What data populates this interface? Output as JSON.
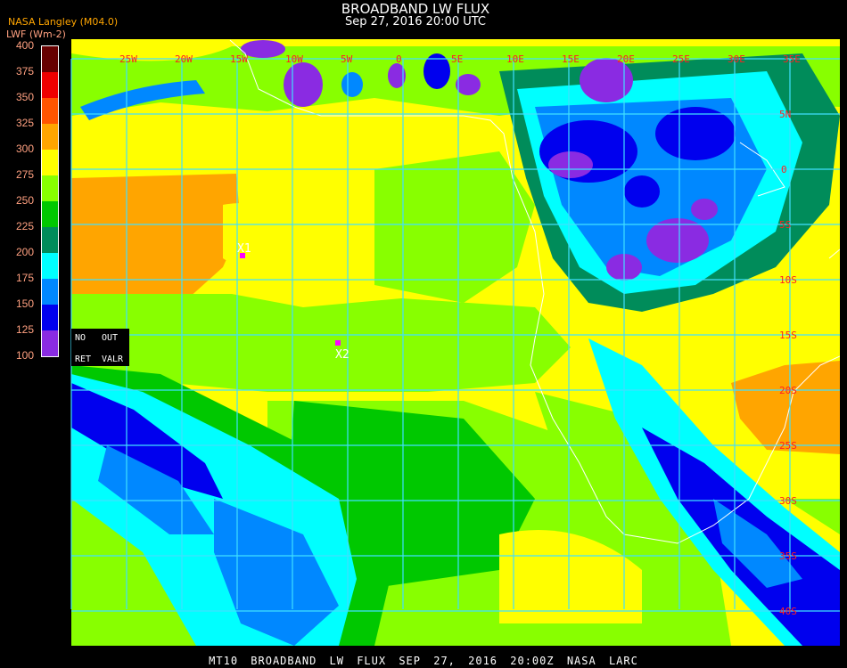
{
  "header": {
    "title": "BROADBAND LW FLUX",
    "subtitle": "Sep 27, 2016 20:00 UTC",
    "org": "NASA Langley (M04.0)",
    "unit": "LWF (Wm-2)"
  },
  "legend": {
    "ticks": [
      "400",
      "375",
      "350",
      "325",
      "300",
      "275",
      "250",
      "225",
      "200",
      "175",
      "150",
      "125",
      "100"
    ],
    "colors": [
      "#660000",
      "#ee0000",
      "#ff5500",
      "#ffa500",
      "#ffff00",
      "#88ff00",
      "#00c800",
      "#008c5a",
      "#00ffff",
      "#0088ff",
      "#0000ee",
      "#8a2be2"
    ]
  },
  "map": {
    "lon_labels": [
      "25W",
      "20W",
      "15W",
      "10W",
      "5W",
      "0",
      "5E",
      "10E",
      "15E",
      "20E",
      "25E",
      "30E",
      "35E"
    ],
    "lat_labels": [
      "5N",
      "0",
      "5S",
      "10S",
      "15S",
      "20S",
      "25S",
      "30S",
      "35S",
      "40S"
    ],
    "grid_color": "#40e0ff",
    "label_color": "#ff2020",
    "markers": [
      {
        "label": "X1"
      },
      {
        "label": "X2"
      }
    ],
    "marker_color": "#ff00ff"
  },
  "controls": {
    "no": "NO",
    "out": "OUT",
    "ret": "RET",
    "valr": "VALR"
  },
  "footer": "MT10  BROADBAND LW FLUX   SEP 27, 2016 20:00Z   NASA LARC"
}
